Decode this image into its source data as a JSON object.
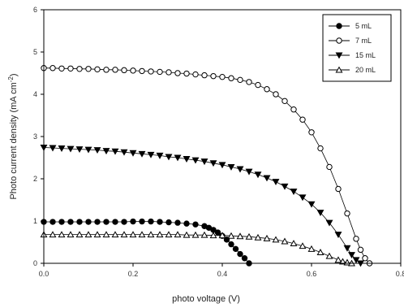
{
  "chart_data": {
    "type": "line",
    "xlabel": "photo voltage (V)",
    "ylabel": "Photo current density (mA cm",
    "ylabel_sup": "-2",
    "ylabel_close": ")",
    "xlim": [
      0,
      0.8
    ],
    "ylim": [
      0,
      6
    ],
    "xticks": [
      0.0,
      0.2,
      0.4,
      0.6,
      0.8
    ],
    "xtick_labels": [
      "0.0",
      "0.2",
      "0.4",
      "0.6",
      "0.8"
    ],
    "yticks": [
      0,
      1,
      2,
      3,
      4,
      5,
      6
    ],
    "ytick_labels": [
      "0",
      "1",
      "2",
      "3",
      "4",
      "5",
      "6"
    ],
    "grid": false,
    "legend_position": "top-right",
    "series": [
      {
        "name": "5 mL",
        "marker": "filled-circle",
        "color": "#000000",
        "x": [
          0.0,
          0.02,
          0.04,
          0.06,
          0.08,
          0.1,
          0.12,
          0.14,
          0.16,
          0.18,
          0.2,
          0.22,
          0.24,
          0.26,
          0.28,
          0.3,
          0.32,
          0.34,
          0.36,
          0.37,
          0.38,
          0.39,
          0.4,
          0.41,
          0.42,
          0.43,
          0.44,
          0.45,
          0.46
        ],
        "y": [
          0.98,
          0.98,
          0.98,
          0.98,
          0.98,
          0.98,
          0.98,
          0.98,
          0.98,
          0.98,
          0.99,
          0.99,
          0.99,
          0.98,
          0.97,
          0.96,
          0.94,
          0.92,
          0.88,
          0.84,
          0.79,
          0.73,
          0.65,
          0.56,
          0.45,
          0.34,
          0.22,
          0.12,
          0.0
        ]
      },
      {
        "name": "7 mL",
        "marker": "open-circle",
        "color": "#000000",
        "x": [
          0.0,
          0.02,
          0.04,
          0.06,
          0.08,
          0.1,
          0.12,
          0.14,
          0.16,
          0.18,
          0.2,
          0.22,
          0.24,
          0.26,
          0.28,
          0.3,
          0.32,
          0.34,
          0.36,
          0.38,
          0.4,
          0.42,
          0.44,
          0.46,
          0.48,
          0.5,
          0.52,
          0.54,
          0.56,
          0.58,
          0.6,
          0.62,
          0.64,
          0.66,
          0.68,
          0.7,
          0.71,
          0.72,
          0.73
        ],
        "y": [
          4.62,
          4.62,
          4.61,
          4.61,
          4.6,
          4.6,
          4.59,
          4.58,
          4.58,
          4.57,
          4.56,
          4.55,
          4.54,
          4.53,
          4.52,
          4.5,
          4.49,
          4.47,
          4.45,
          4.43,
          4.41,
          4.38,
          4.34,
          4.29,
          4.22,
          4.12,
          4.0,
          3.84,
          3.64,
          3.4,
          3.1,
          2.72,
          2.28,
          1.76,
          1.18,
          0.58,
          0.32,
          0.12,
          0.0
        ]
      },
      {
        "name": "15 mL",
        "marker": "filled-triangle-down",
        "color": "#000000",
        "x": [
          0.0,
          0.02,
          0.04,
          0.06,
          0.08,
          0.1,
          0.12,
          0.14,
          0.16,
          0.18,
          0.2,
          0.22,
          0.24,
          0.26,
          0.28,
          0.3,
          0.32,
          0.34,
          0.36,
          0.38,
          0.4,
          0.42,
          0.44,
          0.46,
          0.48,
          0.5,
          0.52,
          0.54,
          0.56,
          0.58,
          0.6,
          0.62,
          0.64,
          0.66,
          0.68,
          0.69,
          0.7,
          0.71
        ],
        "y": [
          2.74,
          2.73,
          2.72,
          2.71,
          2.7,
          2.69,
          2.68,
          2.66,
          2.65,
          2.63,
          2.61,
          2.59,
          2.57,
          2.55,
          2.52,
          2.5,
          2.47,
          2.44,
          2.41,
          2.37,
          2.33,
          2.28,
          2.23,
          2.17,
          2.1,
          2.02,
          1.93,
          1.82,
          1.7,
          1.56,
          1.4,
          1.2,
          0.96,
          0.68,
          0.36,
          0.2,
          0.08,
          0.0
        ]
      },
      {
        "name": "20 mL",
        "marker": "open-triangle-up",
        "color": "#000000",
        "x": [
          0.0,
          0.02,
          0.04,
          0.06,
          0.08,
          0.1,
          0.12,
          0.14,
          0.16,
          0.18,
          0.2,
          0.22,
          0.24,
          0.26,
          0.28,
          0.3,
          0.32,
          0.34,
          0.36,
          0.38,
          0.4,
          0.42,
          0.44,
          0.46,
          0.48,
          0.5,
          0.52,
          0.54,
          0.56,
          0.58,
          0.6,
          0.62,
          0.64,
          0.66,
          0.67,
          0.68,
          0.69
        ],
        "y": [
          0.68,
          0.68,
          0.68,
          0.68,
          0.68,
          0.68,
          0.68,
          0.68,
          0.68,
          0.68,
          0.68,
          0.68,
          0.68,
          0.68,
          0.68,
          0.68,
          0.67,
          0.67,
          0.67,
          0.66,
          0.66,
          0.65,
          0.64,
          0.63,
          0.61,
          0.59,
          0.56,
          0.52,
          0.47,
          0.41,
          0.34,
          0.26,
          0.17,
          0.08,
          0.04,
          0.02,
          0.0
        ]
      }
    ]
  }
}
